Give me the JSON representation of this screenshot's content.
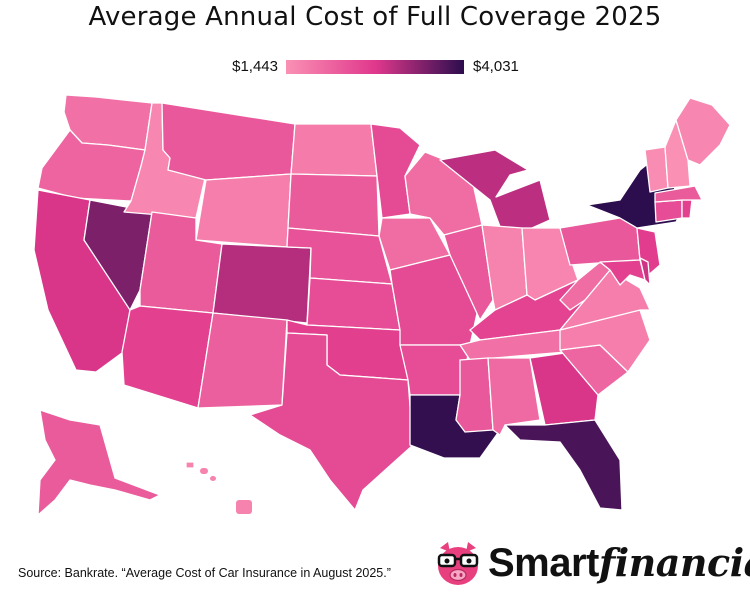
{
  "title": "Average Annual Cost of Full Coverage 2025",
  "legend": {
    "min_label": "$1,443",
    "max_label": "$4,031",
    "min_color": "#fa90b4",
    "mid_color": "#e0388c",
    "max_color": "#2c0d4e"
  },
  "source": "Source: Bankrate. “Average Cost of Car Insurance in August 2025.”",
  "logo": {
    "word_1": "Smart",
    "word_2": "financial",
    "mascot": "pig-with-glasses-icon",
    "brand_color": "#e8407e"
  },
  "map_data": {
    "metric": "Average annual cost of full coverage (relative level, 0 = $1,443, 1 = $4,031)",
    "states": [
      {
        "state": "Washington",
        "level": 0.18
      },
      {
        "state": "Oregon",
        "level": 0.25
      },
      {
        "state": "California",
        "level": 0.52
      },
      {
        "state": "Nevada",
        "level": 0.78
      },
      {
        "state": "Idaho",
        "level": 0.05
      },
      {
        "state": "Montana",
        "level": 0.32
      },
      {
        "state": "Wyoming",
        "level": 0.1
      },
      {
        "state": "Utah",
        "level": 0.3
      },
      {
        "state": "Arizona",
        "level": 0.45
      },
      {
        "state": "Colorado",
        "level": 0.62
      },
      {
        "state": "New Mexico",
        "level": 0.28
      },
      {
        "state": "North Dakota",
        "level": 0.12
      },
      {
        "state": "South Dakota",
        "level": 0.3
      },
      {
        "state": "Nebraska",
        "level": 0.35
      },
      {
        "state": "Kansas",
        "level": 0.38
      },
      {
        "state": "Oklahoma",
        "level": 0.46
      },
      {
        "state": "Texas",
        "level": 0.4
      },
      {
        "state": "Minnesota",
        "level": 0.4
      },
      {
        "state": "Iowa",
        "level": 0.2
      },
      {
        "state": "Missouri",
        "level": 0.4
      },
      {
        "state": "Arkansas",
        "level": 0.38
      },
      {
        "state": "Louisiana",
        "level": 0.98
      },
      {
        "state": "Wisconsin",
        "level": 0.2
      },
      {
        "state": "Illinois",
        "level": 0.32
      },
      {
        "state": "Michigan",
        "level": 0.6
      },
      {
        "state": "Indiana",
        "level": 0.08
      },
      {
        "state": "Ohio",
        "level": 0.06
      },
      {
        "state": "Kentucky",
        "level": 0.44
      },
      {
        "state": "Tennessee",
        "level": 0.18
      },
      {
        "state": "Mississippi",
        "level": 0.32
      },
      {
        "state": "Alabama",
        "level": 0.22
      },
      {
        "state": "Georgia",
        "level": 0.52
      },
      {
        "state": "Florida",
        "level": 0.92
      },
      {
        "state": "South Carolina",
        "level": 0.24
      },
      {
        "state": "North Carolina",
        "level": 0.1
      },
      {
        "state": "Virginia",
        "level": 0.1
      },
      {
        "state": "West Virginia",
        "level": 0.2
      },
      {
        "state": "Pennsylvania",
        "level": 0.32
      },
      {
        "state": "New York",
        "level": 1.0
      },
      {
        "state": "New Jersey",
        "level": 0.48
      },
      {
        "state": "Maryland",
        "level": 0.45
      },
      {
        "state": "Delaware",
        "level": 0.55
      },
      {
        "state": "Connecticut",
        "level": 0.38
      },
      {
        "state": "Rhode Island",
        "level": 0.45
      },
      {
        "state": "Massachusetts",
        "level": 0.3
      },
      {
        "state": "Vermont",
        "level": 0.02
      },
      {
        "state": "New Hampshire",
        "level": 0.0
      },
      {
        "state": "Maine",
        "level": 0.05
      },
      {
        "state": "Alaska",
        "level": 0.3
      },
      {
        "state": "Hawaii",
        "level": 0.08
      }
    ]
  }
}
